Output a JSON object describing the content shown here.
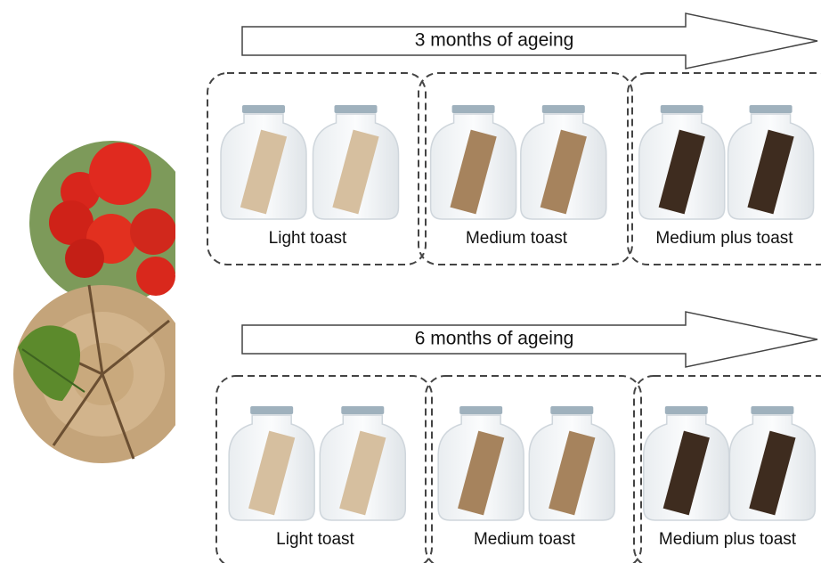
{
  "rows": [
    {
      "label": "3 months of ageing",
      "groups": [
        "Light toast",
        "Medium toast",
        "Medium plus toast"
      ]
    },
    {
      "label": "6 months of ageing",
      "groups": [
        "Light toast",
        "Medium toast",
        "Medium plus toast"
      ]
    }
  ]
}
